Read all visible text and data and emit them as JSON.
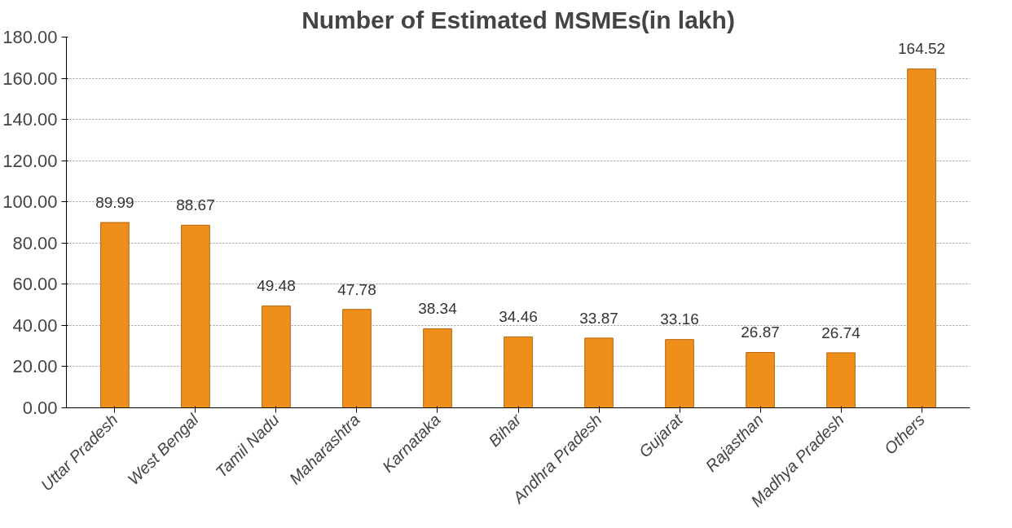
{
  "chart_data": {
    "type": "bar",
    "title": "Number of Estimated MSMEs(in lakh)",
    "categories": [
      "Uttar Pradesh",
      "West Bengal",
      "Tamil Nadu",
      "Maharashtra",
      "Karnataka",
      "Bihar",
      "Andhra Pradesh",
      "Gujarat",
      "Rajasthan",
      "Madhya Pradesh",
      "Others"
    ],
    "values": [
      89.99,
      88.67,
      49.48,
      47.78,
      38.34,
      34.46,
      33.87,
      33.16,
      26.87,
      26.74,
      164.52
    ],
    "color": "#ee8f1c",
    "ylim": [
      0,
      180
    ],
    "yticks": [
      {
        "value": 0,
        "label": "0.00"
      },
      {
        "value": 20,
        "label": "20.00"
      },
      {
        "value": 40,
        "label": "40.00"
      },
      {
        "value": 60,
        "label": "60.00"
      },
      {
        "value": 80,
        "label": "80.00"
      },
      {
        "value": 100,
        "label": "100.00"
      },
      {
        "value": 120,
        "label": "120.00"
      },
      {
        "value": 140,
        "label": "140.00"
      },
      {
        "value": 160,
        "label": "160.00"
      },
      {
        "value": 180,
        "label": "180.00"
      }
    ],
    "grid": "y",
    "data_labels": true
  }
}
